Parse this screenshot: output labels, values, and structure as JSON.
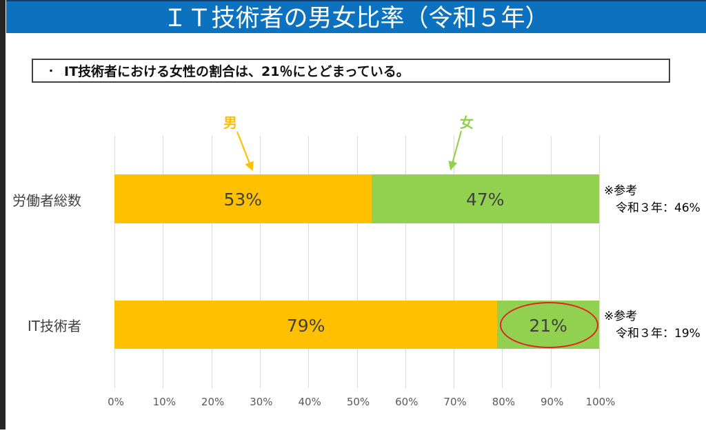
{
  "title": "ＩＴ技術者の男女比率（令和５年）",
  "bullet": {
    "marker": "・",
    "text": "IT技術者における女性の割合は、21％にとどまっている。"
  },
  "colors": {
    "title_bar": "#0C72BF",
    "title_bar_top_border": "#1B3A63",
    "male": "#FFC000",
    "female": "#92D050",
    "ellipse": "#E02424",
    "grid": "#D9D9D9",
    "text": "#404040",
    "tick": "#595959"
  },
  "chart_data": {
    "type": "bar",
    "orientation": "horizontal-stacked",
    "categories": [
      "労働者総数",
      "IT技術者"
    ],
    "series": [
      {
        "name": "男",
        "values": [
          53,
          79
        ],
        "color_key": "male"
      },
      {
        "name": "女",
        "values": [
          47,
          21
        ],
        "color_key": "female"
      }
    ],
    "value_labels": [
      [
        "53%",
        "47%"
      ],
      [
        "79%",
        "21%"
      ]
    ],
    "x_ticks": [
      "0%",
      "10%",
      "20%",
      "30%",
      "40%",
      "50%",
      "60%",
      "70%",
      "80%",
      "90%",
      "100%"
    ],
    "xlim": [
      0,
      100
    ],
    "grid": true,
    "legend_position": "pointer-labels-above-first-bar",
    "highlight": {
      "row": 1,
      "segment": 1,
      "shape": "ellipse",
      "color": "#E02424"
    },
    "annotations": [
      {
        "line1": "※参考",
        "line2": "令和３年：46%"
      },
      {
        "line1": "※参考",
        "line2": "令和３年：19%"
      }
    ]
  }
}
